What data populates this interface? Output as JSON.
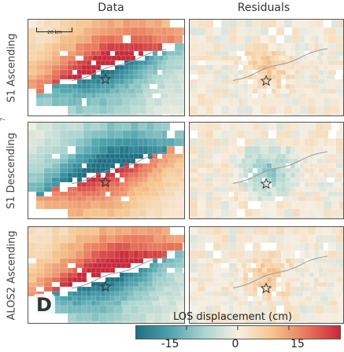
{
  "figure": {
    "columns": [
      {
        "title": "Data"
      },
      {
        "title": "Residuals"
      }
    ],
    "rows": [
      {
        "label": "S1 Ascending"
      },
      {
        "label": "S1 Descending"
      },
      {
        "label": "ALOS2 Ascending"
      }
    ],
    "panel_letter": "D",
    "scale_bar_label": "20 km",
    "stray_mark": "?",
    "colorbar": {
      "title": "LOS displacement (cm)",
      "ticks": [
        "-15",
        "0",
        "15"
      ],
      "colormap": [
        "#1e6f83",
        "#4ea3ad",
        "#a9d4cf",
        "#f6efe3",
        "#f5c58e",
        "#e9785c",
        "#c8283a"
      ]
    }
  }
}
